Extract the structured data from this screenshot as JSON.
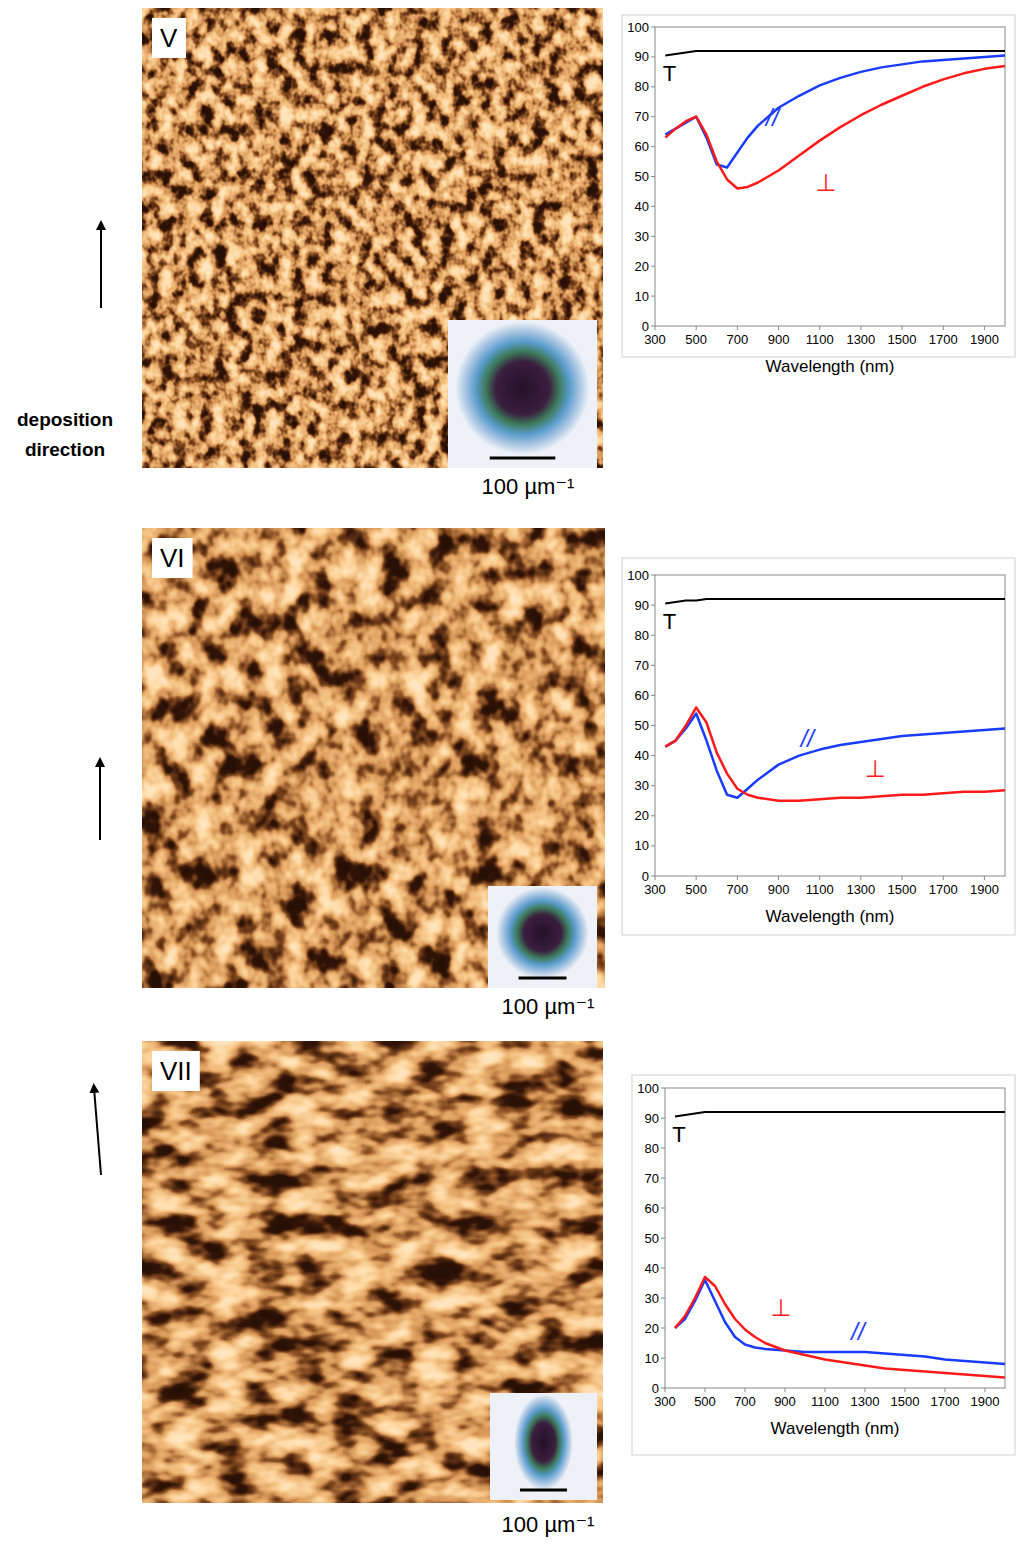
{
  "chart_data": [
    {
      "type": "line",
      "x_label": "Wavelength (nm)",
      "x": [
        350,
        400,
        450,
        500,
        550,
        600,
        650,
        700,
        750,
        800,
        900,
        1000,
        1100,
        1200,
        1300,
        1400,
        1500,
        1600,
        1700,
        1800,
        1900,
        2000
      ],
      "xlim": [
        300,
        2000
      ],
      "xticks": [
        300,
        500,
        700,
        900,
        1100,
        1300,
        1500,
        1700,
        1900
      ],
      "ylim": [
        0,
        100
      ],
      "yticks": [
        0,
        10,
        20,
        30,
        40,
        50,
        60,
        70,
        80,
        90,
        100
      ],
      "grid": false,
      "series": [
        {
          "name": "T",
          "color": "#000000",
          "values": [
            90.5,
            91,
            91.5,
            92,
            92,
            92,
            92,
            92,
            92,
            92,
            92,
            92,
            92,
            92,
            92,
            92,
            92,
            92,
            92,
            92,
            92,
            92
          ]
        },
        {
          "name": "//",
          "color": "#1a3cff",
          "values": [
            64,
            66,
            68,
            70,
            63,
            54,
            53,
            58,
            63,
            67,
            73,
            77,
            80.5,
            83,
            85,
            86.5,
            87.5,
            88.5,
            89,
            89.5,
            90,
            90.5
          ]
        },
        {
          "name": "⊥",
          "color": "#ff1a1a",
          "values": [
            63,
            66,
            68.5,
            70,
            64,
            55,
            49,
            46,
            46.5,
            48,
            52,
            57,
            62,
            66.5,
            70.5,
            74,
            77,
            80,
            82.5,
            84.5,
            86,
            87
          ]
        }
      ]
    },
    {
      "type": "line",
      "x_label": "Wavelength (nm)",
      "x": [
        350,
        400,
        450,
        500,
        550,
        600,
        650,
        700,
        750,
        800,
        900,
        1000,
        1100,
        1200,
        1300,
        1400,
        1500,
        1600,
        1700,
        1800,
        1900,
        2000
      ],
      "xlim": [
        300,
        2000
      ],
      "xticks": [
        300,
        500,
        700,
        900,
        1100,
        1300,
        1500,
        1700,
        1900
      ],
      "ylim": [
        0,
        100
      ],
      "yticks": [
        0,
        10,
        20,
        30,
        40,
        50,
        60,
        70,
        80,
        90,
        100
      ],
      "grid": false,
      "series": [
        {
          "name": "T",
          "color": "#000000",
          "values": [
            90.5,
            91,
            91.5,
            91.5,
            92,
            92,
            92,
            92,
            92,
            92,
            92,
            92,
            92,
            92,
            92,
            92,
            92,
            92,
            92,
            92,
            92,
            92
          ]
        },
        {
          "name": "//",
          "color": "#1a3cff",
          "values": [
            43,
            45,
            49,
            54,
            45,
            35,
            27,
            26,
            29,
            32,
            37,
            40,
            42,
            43.5,
            44.5,
            45.5,
            46.5,
            47,
            47.5,
            48,
            48.5,
            49
          ]
        },
        {
          "name": "⊥",
          "color": "#ff1a1a",
          "values": [
            43,
            45,
            50,
            56,
            51,
            41,
            34,
            29,
            27,
            26,
            25,
            25,
            25.5,
            26,
            26,
            26.5,
            27,
            27,
            27.5,
            28,
            28,
            28.5
          ]
        }
      ]
    },
    {
      "type": "line",
      "x_label": "Wavelength (nm)",
      "x": [
        350,
        400,
        450,
        500,
        550,
        600,
        650,
        700,
        750,
        800,
        900,
        1000,
        1100,
        1200,
        1300,
        1400,
        1500,
        1600,
        1700,
        1800,
        1900,
        2000
      ],
      "xlim": [
        300,
        2000
      ],
      "xticks": [
        300,
        500,
        700,
        900,
        1100,
        1300,
        1500,
        1700,
        1900
      ],
      "ylim": [
        0,
        100
      ],
      "yticks": [
        0,
        10,
        20,
        30,
        40,
        50,
        60,
        70,
        80,
        90,
        100
      ],
      "grid": false,
      "series": [
        {
          "name": "T",
          "color": "#000000",
          "values": [
            90.5,
            91,
            91.5,
            92,
            92,
            92,
            92,
            92,
            92,
            92,
            92,
            92,
            92,
            92,
            92,
            92,
            92,
            92,
            92,
            92,
            92,
            92
          ]
        },
        {
          "name": "//",
          "color": "#1a3cff",
          "values": [
            20,
            23,
            29,
            36,
            29,
            22,
            17,
            14.5,
            13.5,
            13,
            12.5,
            12,
            12,
            12,
            12,
            11.5,
            11,
            10.5,
            9.5,
            9,
            8.5,
            8
          ]
        },
        {
          "name": "⊥",
          "color": "#ff1a1a",
          "values": [
            20,
            24,
            30,
            37,
            34,
            28,
            23,
            19.5,
            17,
            15,
            12.5,
            11,
            9.5,
            8.5,
            7.5,
            6.5,
            6,
            5.5,
            5,
            4.5,
            4,
            3.5
          ]
        }
      ]
    }
  ],
  "images": [
    {
      "label": "V",
      "scale_label": "100 µm⁻¹"
    },
    {
      "label": "VI",
      "scale_label": "100 µm⁻¹"
    },
    {
      "label": "VII",
      "scale_label": "100 µm⁻¹"
    }
  ],
  "arrow_label": "deposition direction"
}
